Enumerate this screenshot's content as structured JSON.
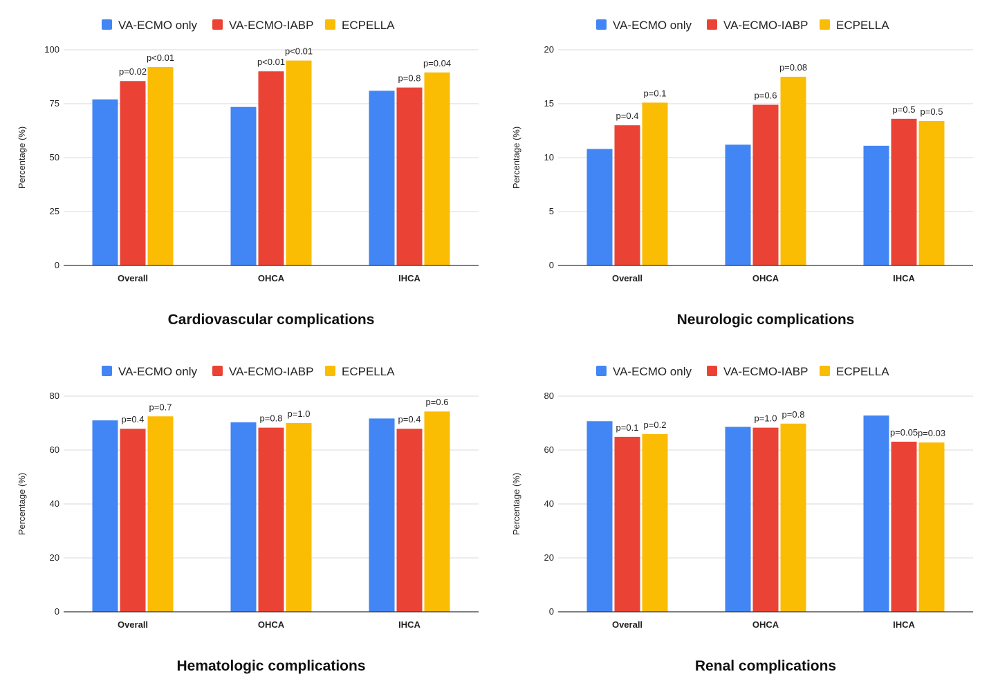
{
  "colors": {
    "VA-ECMO only": "#4285F4",
    "VA-ECMO-IABP": "#EA4335",
    "ECPELLA": "#FBBC04",
    "grid": "#d9d9d9",
    "axis": "#333333"
  },
  "chart_data": [
    {
      "type": "bar",
      "title": "Cardiovascular complications",
      "ylabel": "Percentage (%)",
      "xlabel": "",
      "categories": [
        "Overall",
        "OHCA",
        "IHCA"
      ],
      "ylim": [
        0,
        100
      ],
      "yticks": [
        0,
        25,
        50,
        75,
        100
      ],
      "legend": "top-left",
      "series": [
        {
          "name": "VA-ECMO only",
          "values": [
            77,
            73.5,
            81
          ],
          "labels": [
            "",
            "",
            ""
          ]
        },
        {
          "name": "VA-ECMO-IABP",
          "values": [
            85.5,
            90,
            82.5
          ],
          "labels": [
            "p=0.02",
            "p<0.01",
            "p=0.8"
          ]
        },
        {
          "name": "ECPELLA",
          "values": [
            92,
            95,
            89.5
          ],
          "labels": [
            "p<0.01",
            "p<0.01",
            "p=0.04"
          ]
        }
      ]
    },
    {
      "type": "bar",
      "title": "Neurologic complications",
      "ylabel": "Percentage (%)",
      "xlabel": "",
      "categories": [
        "Overall",
        "OHCA",
        "IHCA"
      ],
      "ylim": [
        0,
        20
      ],
      "yticks": [
        0,
        5,
        10,
        15,
        20
      ],
      "legend": "top-left",
      "series": [
        {
          "name": "VA-ECMO only",
          "values": [
            10.8,
            11.2,
            11.1
          ],
          "labels": [
            "",
            "",
            ""
          ]
        },
        {
          "name": "VA-ECMO-IABP",
          "values": [
            13,
            14.9,
            13.6
          ],
          "labels": [
            "p=0.4",
            "p=0.6",
            "p=0.5"
          ]
        },
        {
          "name": "ECPELLA",
          "values": [
            15.1,
            17.5,
            13.4
          ],
          "labels": [
            "p=0.1",
            "p=0.08",
            "p=0.5"
          ]
        }
      ]
    },
    {
      "type": "bar",
      "title": "Hematologic complications",
      "ylabel": "Percentage (%)",
      "xlabel": "",
      "categories": [
        "Overall",
        "OHCA",
        "IHCA"
      ],
      "ylim": [
        0,
        80
      ],
      "yticks": [
        0,
        20,
        40,
        60,
        80
      ],
      "legend": "top-left",
      "series": [
        {
          "name": "VA-ECMO only",
          "values": [
            71,
            70.3,
            71.7
          ],
          "labels": [
            "",
            "",
            ""
          ]
        },
        {
          "name": "VA-ECMO-IABP",
          "values": [
            67.9,
            68.3,
            67.9
          ],
          "labels": [
            "p=0.4",
            "p=0.8",
            "p=0.4"
          ]
        },
        {
          "name": "ECPELLA",
          "values": [
            72.5,
            70,
            74.3
          ],
          "labels": [
            "p=0.7",
            "p=1.0",
            "p=0.6"
          ]
        }
      ]
    },
    {
      "type": "bar",
      "title": "Renal complications",
      "ylabel": "Percentage (%)",
      "xlabel": "",
      "categories": [
        "Overall",
        "OHCA",
        "IHCA"
      ],
      "ylim": [
        0,
        80
      ],
      "yticks": [
        0,
        20,
        40,
        60,
        80
      ],
      "legend": "top-left",
      "series": [
        {
          "name": "VA-ECMO only",
          "values": [
            70.7,
            68.6,
            72.8
          ],
          "labels": [
            "",
            "",
            ""
          ]
        },
        {
          "name": "VA-ECMO-IABP",
          "values": [
            64.9,
            68.3,
            63.1
          ],
          "labels": [
            "p=0.1",
            "p=1.0",
            "p=0.05"
          ]
        },
        {
          "name": "ECPELLA",
          "values": [
            65.9,
            69.8,
            62.8
          ],
          "labels": [
            "p=0.2",
            "p=0.8",
            "p=0.03"
          ]
        }
      ]
    }
  ]
}
